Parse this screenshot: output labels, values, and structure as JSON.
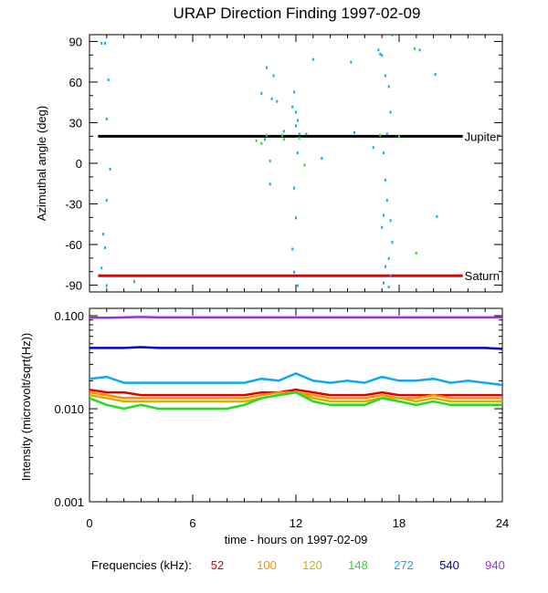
{
  "title": "URAP Direction Finding  1997-02-09",
  "x_axis": {
    "label": "time - hours on 1997-02-09",
    "ticks": [
      "0",
      "6",
      "12",
      "18",
      "24"
    ]
  },
  "legend": {
    "label": "Frequencies (kHz):",
    "items": [
      {
        "name": "52",
        "color": "#e00000"
      },
      {
        "name": "100",
        "color": "#ff8c00"
      },
      {
        "name": "120",
        "color": "#d4b000"
      },
      {
        "name": "148",
        "color": "#22dd22"
      },
      {
        "name": "272",
        "color": "#10a8f0"
      },
      {
        "name": "540",
        "color": "#0000cc"
      },
      {
        "name": "940",
        "color": "#9a30e0"
      }
    ]
  },
  "chart_data": [
    {
      "type": "scatter",
      "title": "URAP Direction Finding  1997-02-09",
      "xlabel": "",
      "ylabel": "Azimuthal angle (deg)",
      "xlim": [
        0,
        24
      ],
      "ylim": [
        -95,
        95
      ],
      "yticks": [
        90,
        60,
        30,
        0,
        -30,
        -60,
        -90
      ],
      "reference_lines": [
        {
          "name": "Jupiter",
          "y": 20,
          "color": "#000000"
        },
        {
          "name": "Saturn",
          "y": -83,
          "color": "#e00000"
        }
      ],
      "series": [
        {
          "name": "272",
          "color": "#10a8f0",
          "points": [
            [
              0.7,
              89
            ],
            [
              0.9,
              89
            ],
            [
              1.1,
              62
            ],
            [
              1.0,
              33
            ],
            [
              1.2,
              -4
            ],
            [
              1.0,
              -27
            ],
            [
              0.8,
              -52
            ],
            [
              0.9,
              -62
            ],
            [
              0.7,
              -77
            ],
            [
              1.0,
              -90
            ],
            [
              2.6,
              -87
            ],
            [
              10.3,
              71
            ],
            [
              10.7,
              65
            ],
            [
              10.6,
              48
            ],
            [
              10.9,
              46
            ],
            [
              10.5,
              -15
            ],
            [
              10.2,
              18
            ],
            [
              10.0,
              52
            ],
            [
              11.3,
              24
            ],
            [
              11.9,
              53
            ],
            [
              11.8,
              42
            ],
            [
              12.0,
              38
            ],
            [
              12.1,
              32
            ],
            [
              12.0,
              28
            ],
            [
              12.2,
              22
            ],
            [
              12.1,
              8
            ],
            [
              11.9,
              -18
            ],
            [
              12.0,
              -40
            ],
            [
              11.8,
              -63
            ],
            [
              11.9,
              -80
            ],
            [
              12.1,
              -90
            ],
            [
              12.6,
              22
            ],
            [
              13.0,
              77
            ],
            [
              13.5,
              4
            ],
            [
              15.2,
              75
            ],
            [
              15.4,
              23
            ],
            [
              16.5,
              12
            ],
            [
              16.8,
              84
            ],
            [
              17.0,
              80
            ],
            [
              17.2,
              65
            ],
            [
              17.4,
              57
            ],
            [
              17.5,
              38
            ],
            [
              17.3,
              22
            ],
            [
              17.1,
              8
            ],
            [
              17.2,
              -12
            ],
            [
              17.3,
              -27
            ],
            [
              17.1,
              -38
            ],
            [
              17.5,
              -42
            ],
            [
              17.0,
              -47
            ],
            [
              17.6,
              -58
            ],
            [
              17.2,
              -76
            ],
            [
              17.5,
              -83
            ],
            [
              17.1,
              -88
            ],
            [
              17.4,
              -91
            ],
            [
              16.9,
              81
            ],
            [
              19.2,
              84
            ],
            [
              20.1,
              66
            ],
            [
              20.2,
              -39
            ],
            [
              17.6,
              95
            ],
            [
              17.4,
              -70
            ]
          ]
        },
        {
          "name": "148",
          "color": "#22dd22",
          "points": [
            [
              9.7,
              17
            ],
            [
              10.0,
              15
            ],
            [
              10.3,
              21
            ],
            [
              10.5,
              2
            ],
            [
              11.2,
              21
            ],
            [
              11.3,
              18
            ],
            [
              12.2,
              19
            ],
            [
              12.5,
              -1
            ],
            [
              18.0,
              20
            ],
            [
              19.0,
              -66
            ],
            [
              18.9,
              85
            ],
            [
              16.9,
              21
            ]
          ]
        }
      ]
    },
    {
      "type": "line",
      "ylabel": "Intensity (microvolt/sqrt(Hz))",
      "xlabel": "time - hours on 1997-02-09",
      "xlim": [
        0,
        24
      ],
      "ylim": [
        0.001,
        0.12
      ],
      "yscale": "log",
      "yticks": [
        "0.100",
        "0.010",
        "0.001"
      ],
      "x": [
        0,
        1,
        2,
        3,
        4,
        5,
        6,
        7,
        8,
        9,
        10,
        11,
        12,
        13,
        14,
        15,
        16,
        17,
        18,
        19,
        20,
        21,
        22,
        23,
        24
      ],
      "series": [
        {
          "name": "940",
          "color": "#9a30e0",
          "values": [
            0.095,
            0.095,
            0.096,
            0.097,
            0.096,
            0.096,
            0.096,
            0.096,
            0.096,
            0.096,
            0.096,
            0.096,
            0.096,
            0.096,
            0.096,
            0.096,
            0.096,
            0.096,
            0.096,
            0.096,
            0.096,
            0.096,
            0.096,
            0.096,
            0.096
          ]
        },
        {
          "name": "540",
          "color": "#0000cc",
          "values": [
            0.045,
            0.045,
            0.045,
            0.046,
            0.045,
            0.045,
            0.045,
            0.045,
            0.045,
            0.045,
            0.045,
            0.045,
            0.045,
            0.045,
            0.045,
            0.045,
            0.045,
            0.045,
            0.045,
            0.045,
            0.045,
            0.045,
            0.045,
            0.045,
            0.044
          ]
        },
        {
          "name": "272",
          "color": "#10a8f0",
          "values": [
            0.021,
            0.022,
            0.019,
            0.019,
            0.019,
            0.019,
            0.019,
            0.019,
            0.019,
            0.019,
            0.021,
            0.02,
            0.024,
            0.02,
            0.019,
            0.02,
            0.019,
            0.022,
            0.02,
            0.02,
            0.021,
            0.019,
            0.02,
            0.019,
            0.018
          ]
        },
        {
          "name": "52",
          "color": "#e00000",
          "values": [
            0.016,
            0.015,
            0.015,
            0.014,
            0.014,
            0.014,
            0.014,
            0.014,
            0.014,
            0.014,
            0.015,
            0.015,
            0.016,
            0.015,
            0.014,
            0.014,
            0.014,
            0.015,
            0.014,
            0.014,
            0.014,
            0.014,
            0.014,
            0.014,
            0.014
          ]
        },
        {
          "name": "100",
          "color": "#ff8c00",
          "values": [
            0.015,
            0.014,
            0.013,
            0.013,
            0.013,
            0.013,
            0.013,
            0.013,
            0.013,
            0.013,
            0.014,
            0.015,
            0.015,
            0.014,
            0.013,
            0.013,
            0.013,
            0.014,
            0.013,
            0.013,
            0.014,
            0.013,
            0.013,
            0.013,
            0.013
          ]
        },
        {
          "name": "120",
          "color": "#d4b000",
          "values": [
            0.014,
            0.013,
            0.012,
            0.012,
            0.012,
            0.012,
            0.012,
            0.012,
            0.012,
            0.012,
            0.013,
            0.014,
            0.015,
            0.013,
            0.012,
            0.012,
            0.012,
            0.013,
            0.013,
            0.012,
            0.013,
            0.012,
            0.012,
            0.012,
            0.012
          ]
        },
        {
          "name": "148",
          "color": "#22dd22",
          "values": [
            0.013,
            0.011,
            0.01,
            0.011,
            0.01,
            0.01,
            0.01,
            0.01,
            0.01,
            0.011,
            0.013,
            0.014,
            0.015,
            0.012,
            0.011,
            0.011,
            0.011,
            0.013,
            0.012,
            0.011,
            0.012,
            0.011,
            0.011,
            0.011,
            0.011
          ]
        }
      ]
    }
  ]
}
